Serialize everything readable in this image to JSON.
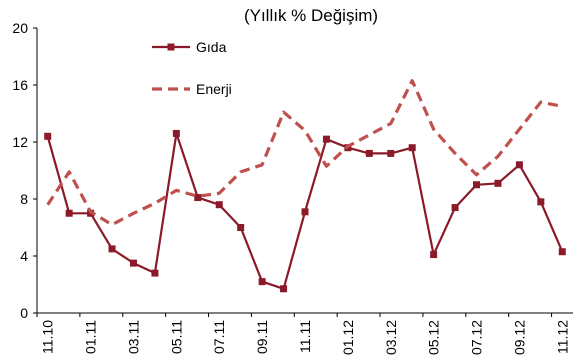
{
  "chart_data": {
    "type": "line",
    "title": "(Yıllık % Değişim)",
    "xlabel": "",
    "ylabel": "",
    "ylim": [
      0,
      20
    ],
    "yticks": [
      0,
      4,
      8,
      12,
      16,
      20
    ],
    "x": [
      "11.10",
      "12.10",
      "01.11",
      "02.11",
      "03.11",
      "04.11",
      "05.11",
      "06.11",
      "07.11",
      "08.11",
      "09.11",
      "10.11",
      "11.11",
      "12.11",
      "01.12",
      "02.12",
      "03.12",
      "04.12",
      "05.12",
      "06.12",
      "07.12",
      "08.12",
      "09.12",
      "10.12",
      "11.12"
    ],
    "x_tick_labels": [
      "11.10",
      "01.11",
      "03.11",
      "05.11",
      "07.11",
      "09.11",
      "11.11",
      "01.12",
      "03.12",
      "05.12",
      "07.12",
      "09.12",
      "11.12"
    ],
    "series": [
      {
        "name": "Gıda",
        "color": "#8b1a2b",
        "style": "solid-markers",
        "values": [
          12.4,
          7.0,
          7.0,
          4.5,
          3.5,
          2.8,
          12.6,
          8.1,
          7.6,
          6.0,
          2.2,
          1.7,
          7.1,
          12.2,
          11.6,
          11.2,
          11.2,
          11.6,
          4.1,
          7.4,
          9.0,
          9.1,
          10.4,
          7.8,
          4.3
        ]
      },
      {
        "name": "Enerji",
        "color": "#c0504d",
        "style": "dashed",
        "values": [
          7.6,
          9.9,
          7.1,
          6.2,
          7.0,
          7.7,
          8.6,
          8.2,
          8.4,
          9.9,
          10.4,
          14.1,
          12.8,
          10.3,
          11.7,
          12.5,
          13.3,
          16.3,
          12.9,
          11.2,
          9.7,
          11.0,
          12.9,
          14.8,
          14.5
        ]
      }
    ],
    "legend": "top-left-inside",
    "grid": false
  }
}
